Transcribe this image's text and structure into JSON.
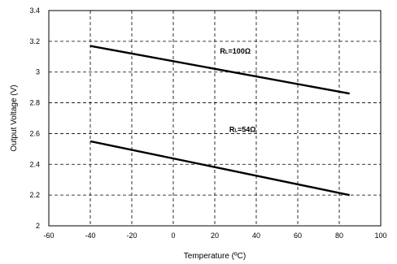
{
  "chart_data": {
    "type": "line",
    "xlabel": "Temperature (ºC)",
    "ylabel": "Output Voltage (V)",
    "xlim": [
      -60,
      100
    ],
    "ylim": [
      2,
      3.4
    ],
    "x_ticks": [
      -60,
      -40,
      -20,
      0,
      20,
      40,
      60,
      80,
      100
    ],
    "y_ticks": [
      2,
      2.2,
      2.4,
      2.6,
      2.8,
      3,
      3.2,
      3.4
    ],
    "y_tick_labels": [
      "2",
      "2.2",
      "2.4",
      "2.6",
      "2.8",
      "3",
      "3.2",
      "3.4"
    ],
    "grid": true,
    "series": [
      {
        "name": "RL=100Ω",
        "label_main": "R",
        "label_sub": "L",
        "label_rest": "=100Ω",
        "x": [
          -40,
          85
        ],
        "y": [
          3.17,
          2.86
        ]
      },
      {
        "name": "RL=54Ω",
        "label_main": "R",
        "label_sub": "L",
        "label_rest": "=54Ω",
        "x": [
          -40,
          85
        ],
        "y": [
          2.55,
          2.2
        ]
      }
    ]
  }
}
